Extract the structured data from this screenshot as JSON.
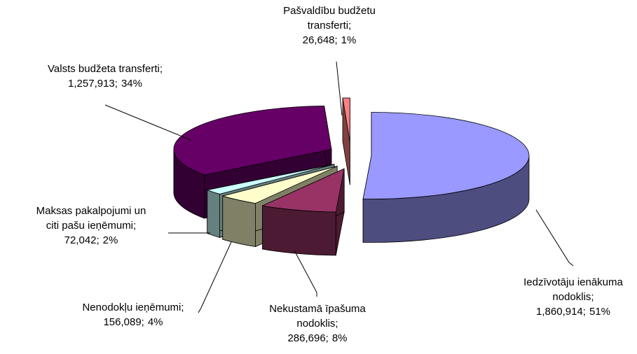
{
  "chart_data": {
    "type": "pie",
    "categories": [
      "Iedzīvotāju ienākuma nodoklis;",
      "Nekustamā īpašuma nodoklis;",
      "Nenodokļu ieņēmumi;",
      "Maksas pakalpojumi un citi pašu ieņēmumi;",
      "Valsts budžeta transferti;",
      "Pašvaldību budžetu transferti;"
    ],
    "values": [
      1860914,
      286696,
      156089,
      72042,
      1257913,
      26648
    ],
    "value_labels": [
      "1,860,914;",
      "286,696;",
      "156,089;",
      "72,042;",
      "1,257,913;",
      "26,648;"
    ],
    "percents": [
      51,
      8,
      4,
      2,
      34,
      1
    ],
    "percent_labels": [
      "51%",
      "8%",
      "4%",
      "2%",
      "34%",
      "1%"
    ],
    "colors": [
      "#9999ff",
      "#993366",
      "#ffffcc",
      "#ccffff",
      "#660066",
      "#ff8080"
    ],
    "exploded": true,
    "three_d": true
  }
}
